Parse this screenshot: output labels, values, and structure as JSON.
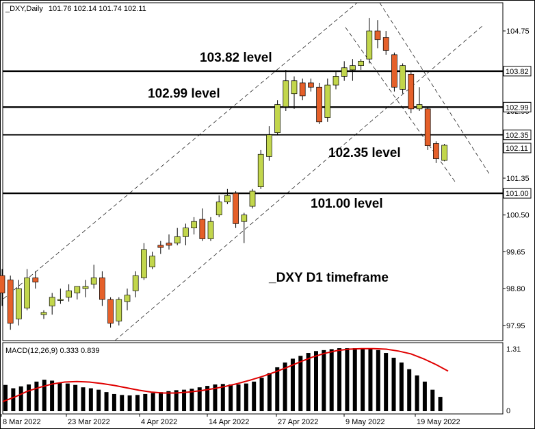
{
  "header": {
    "symbol": "_DXY,Daily",
    "ohlc": "101.76 102.14 101.74 102.11"
  },
  "chart_data": {
    "type": "candlestick",
    "timeframe_label": "_DXY D1 timeframe",
    "y_ticks": [
      "104.75",
      "103.80",
      "102.90",
      "102.05",
      "101.35",
      "100.50",
      "99.65",
      "98.80",
      "97.95"
    ],
    "x_ticks": [
      "8 Mar 2022",
      "23 Mar 2022",
      "4 Apr 2022",
      "14 Apr 2022",
      "27 Apr 2022",
      "9 May 2022",
      "19 May 2022"
    ],
    "levels": [
      {
        "value": 103.82,
        "label": "103.82 level",
        "tag": "103.82"
      },
      {
        "value": 102.99,
        "label": "102.99 level",
        "tag": "102.99"
      },
      {
        "value": 102.35,
        "label": "102.35 level",
        "tag": "102.35"
      },
      {
        "value": 101.0,
        "label": "101.00 level",
        "tag": "101.00"
      }
    ],
    "last_price": "102.11",
    "bull_color": "#c2d64c",
    "bear_color": "#e5602a",
    "candles": [
      {
        "o": 99.1,
        "h": 99.25,
        "l": 98.4,
        "c": 98.7
      },
      {
        "o": 99.0,
        "h": 99.1,
        "l": 97.85,
        "c": 98.0
      },
      {
        "o": 98.1,
        "h": 99.0,
        "l": 97.95,
        "c": 98.8
      },
      {
        "o": 98.35,
        "h": 99.25,
        "l": 98.3,
        "c": 99.05
      },
      {
        "o": 99.05,
        "h": 99.2,
        "l": 98.8,
        "c": 98.95
      },
      {
        "o": 98.2,
        "h": 98.3,
        "l": 98.1,
        "c": 98.25
      },
      {
        "o": 98.4,
        "h": 98.7,
        "l": 98.2,
        "c": 98.6
      },
      {
        "o": 98.55,
        "h": 98.8,
        "l": 98.45,
        "c": 98.55
      },
      {
        "o": 98.6,
        "h": 98.9,
        "l": 98.5,
        "c": 98.75
      },
      {
        "o": 98.7,
        "h": 98.85,
        "l": 98.55,
        "c": 98.85
      },
      {
        "o": 98.8,
        "h": 99.0,
        "l": 98.6,
        "c": 98.85
      },
      {
        "o": 98.9,
        "h": 99.35,
        "l": 98.8,
        "c": 99.05
      },
      {
        "o": 99.05,
        "h": 99.2,
        "l": 98.4,
        "c": 98.55
      },
      {
        "o": 98.55,
        "h": 98.6,
        "l": 97.9,
        "c": 98.0
      },
      {
        "o": 98.05,
        "h": 98.6,
        "l": 97.95,
        "c": 98.55
      },
      {
        "o": 98.5,
        "h": 98.8,
        "l": 98.3,
        "c": 98.65
      },
      {
        "o": 98.75,
        "h": 99.2,
        "l": 98.6,
        "c": 99.1
      },
      {
        "o": 99.05,
        "h": 99.85,
        "l": 99.0,
        "c": 99.7
      },
      {
        "o": 99.3,
        "h": 99.65,
        "l": 99.25,
        "c": 99.55
      },
      {
        "o": 99.8,
        "h": 99.9,
        "l": 99.6,
        "c": 99.75
      },
      {
        "o": 99.85,
        "h": 100.05,
        "l": 99.7,
        "c": 99.8
      },
      {
        "o": 99.85,
        "h": 100.2,
        "l": 99.8,
        "c": 100.0
      },
      {
        "o": 100.0,
        "h": 100.3,
        "l": 99.8,
        "c": 100.2
      },
      {
        "o": 100.2,
        "h": 100.45,
        "l": 100.05,
        "c": 100.35
      },
      {
        "o": 100.4,
        "h": 100.65,
        "l": 99.9,
        "c": 99.95
      },
      {
        "o": 99.95,
        "h": 100.45,
        "l": 99.9,
        "c": 100.35
      },
      {
        "o": 100.5,
        "h": 100.95,
        "l": 100.45,
        "c": 100.8
      },
      {
        "o": 100.8,
        "h": 101.1,
        "l": 100.75,
        "c": 100.95
      },
      {
        "o": 101.0,
        "h": 101.05,
        "l": 100.2,
        "c": 100.3
      },
      {
        "o": 100.35,
        "h": 100.55,
        "l": 99.85,
        "c": 100.5
      },
      {
        "o": 100.7,
        "h": 101.1,
        "l": 100.65,
        "c": 101.05
      },
      {
        "o": 101.15,
        "h": 102.0,
        "l": 101.1,
        "c": 101.9
      },
      {
        "o": 101.85,
        "h": 102.55,
        "l": 101.75,
        "c": 102.35
      },
      {
        "o": 102.4,
        "h": 103.15,
        "l": 102.35,
        "c": 103.05
      },
      {
        "o": 103.0,
        "h": 103.85,
        "l": 102.9,
        "c": 103.6
      },
      {
        "o": 103.3,
        "h": 103.7,
        "l": 102.95,
        "c": 103.6
      },
      {
        "o": 103.55,
        "h": 103.65,
        "l": 103.15,
        "c": 103.25
      },
      {
        "o": 103.55,
        "h": 103.65,
        "l": 103.35,
        "c": 103.45
      },
      {
        "o": 103.45,
        "h": 103.55,
        "l": 102.6,
        "c": 102.65
      },
      {
        "o": 102.75,
        "h": 103.65,
        "l": 102.65,
        "c": 103.5
      },
      {
        "o": 103.5,
        "h": 103.8,
        "l": 103.4,
        "c": 103.7
      },
      {
        "o": 103.7,
        "h": 104.05,
        "l": 103.6,
        "c": 103.9
      },
      {
        "o": 103.85,
        "h": 104.1,
        "l": 103.6,
        "c": 103.95
      },
      {
        "o": 103.95,
        "h": 104.1,
        "l": 103.85,
        "c": 104.05
      },
      {
        "o": 104.1,
        "h": 105.05,
        "l": 104.0,
        "c": 104.75
      },
      {
        "o": 104.75,
        "h": 105.0,
        "l": 104.35,
        "c": 104.55
      },
      {
        "o": 104.6,
        "h": 104.75,
        "l": 104.2,
        "c": 104.3
      },
      {
        "o": 104.2,
        "h": 104.25,
        "l": 103.35,
        "c": 103.45
      },
      {
        "o": 103.4,
        "h": 104.0,
        "l": 103.3,
        "c": 103.95
      },
      {
        "o": 103.75,
        "h": 103.8,
        "l": 102.85,
        "c": 102.95
      },
      {
        "o": 102.95,
        "h": 103.45,
        "l": 102.9,
        "c": 103.05
      },
      {
        "o": 102.95,
        "h": 103.0,
        "l": 102.0,
        "c": 102.1
      },
      {
        "o": 102.15,
        "h": 102.2,
        "l": 101.7,
        "c": 101.8
      },
      {
        "o": 101.76,
        "h": 102.14,
        "l": 101.74,
        "c": 102.11
      }
    ],
    "macd": {
      "label": "MACD(12,26,9) 0.333 0.839",
      "y_tick_top": "1.31",
      "y_tick_zero": "0",
      "histogram": [
        0.55,
        0.48,
        0.52,
        0.56,
        0.62,
        0.66,
        0.64,
        0.6,
        0.58,
        0.55,
        0.5,
        0.48,
        0.45,
        0.4,
        0.36,
        0.34,
        0.33,
        0.34,
        0.36,
        0.38,
        0.4,
        0.42,
        0.44,
        0.45,
        0.47,
        0.5,
        0.53,
        0.56,
        0.57,
        0.56,
        0.56,
        0.58,
        0.62,
        0.7,
        0.8,
        0.92,
        1.02,
        1.1,
        1.16,
        1.22,
        1.26,
        1.28,
        1.3,
        1.32,
        1.32,
        1.32,
        1.32,
        1.31,
        1.28,
        1.22,
        1.12,
        1.02,
        0.88,
        0.75,
        0.62,
        0.45,
        0.3
      ],
      "signal": [
        0.2,
        0.3,
        0.42,
        0.5,
        0.57,
        0.61,
        0.62,
        0.61,
        0.58,
        0.54,
        0.49,
        0.44,
        0.4,
        0.38,
        0.38,
        0.4,
        0.43,
        0.47,
        0.52,
        0.58,
        0.65,
        0.73,
        0.82,
        0.92,
        1.03,
        1.13,
        1.21,
        1.27,
        1.3,
        1.31,
        1.31,
        1.3,
        1.26,
        1.2,
        1.1,
        0.98,
        0.84
      ],
      "line_color": "#e00000"
    }
  }
}
